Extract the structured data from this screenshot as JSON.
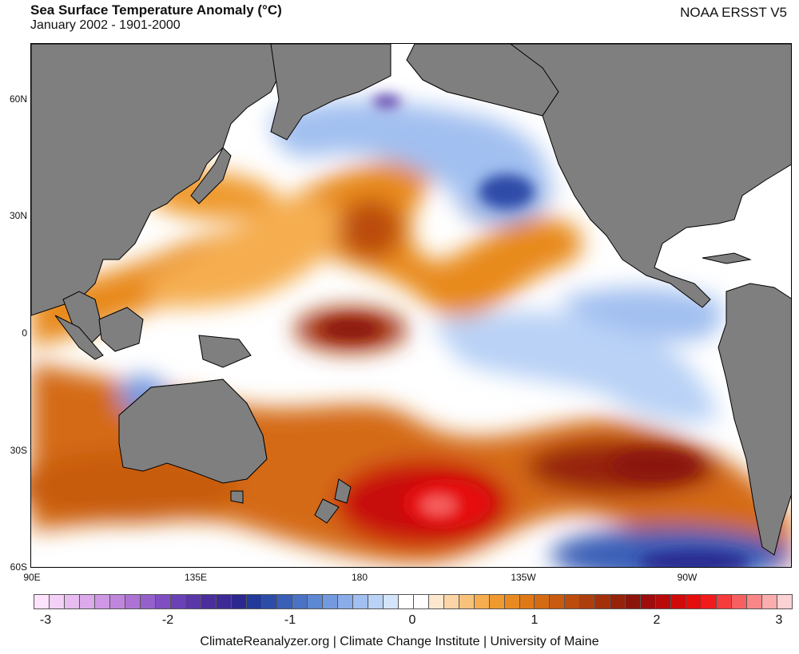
{
  "header": {
    "title": "Sea Surface Temperature Anomaly (°C)",
    "subtitle": "January 2002 - 1901-2000",
    "dataset": "NOAA ERSST V5"
  },
  "map": {
    "region": "Pacific Ocean",
    "lat_ticks": [
      "60N",
      "30N",
      "0",
      "30S",
      "60S"
    ],
    "lon_ticks": [
      "90E",
      "135E",
      "180",
      "135W",
      "90W"
    ],
    "colors": {
      "land": "#7f7f7f",
      "coast": "#000000",
      "neutral": "#ffffff"
    }
  },
  "colorbar": {
    "tick_labels": [
      "-3",
      "-2",
      "-1",
      "0",
      "1",
      "2",
      "3"
    ],
    "colors": [
      "#fde3fb",
      "#f3d0f5",
      "#e8bcf0",
      "#dcaaea",
      "#cf98e4",
      "#bf86dc",
      "#ac73d4",
      "#9660cb",
      "#7f4fc2",
      "#6b42b5",
      "#5a37a8",
      "#4a2e9c",
      "#3c2a96",
      "#2b2990",
      "#233a9a",
      "#2d4ca8",
      "#3a5fb7",
      "#4a73c6",
      "#5d88d3",
      "#7399df",
      "#8aace8",
      "#a1bff0",
      "#b9d2f6",
      "#d3e4fb",
      "#ffffff",
      "#ffffff",
      "#fde7cf",
      "#fbd5a6",
      "#f9c27b",
      "#f5ad50",
      "#ef9a2f",
      "#e88a1f",
      "#e07915",
      "#d46a12",
      "#c85b10",
      "#bb4c0e",
      "#ae3e0c",
      "#a2300a",
      "#96220a",
      "#8c150b",
      "#9e0c0c",
      "#b80a0a",
      "#d10a0a",
      "#e60d0d",
      "#f21b1b",
      "#f53b3b",
      "#f76060",
      "#f98787",
      "#fbadad",
      "#fdd2d2"
    ]
  },
  "credit": "ClimateReanalyzer.org | Climate Change Institute | University of Maine"
}
